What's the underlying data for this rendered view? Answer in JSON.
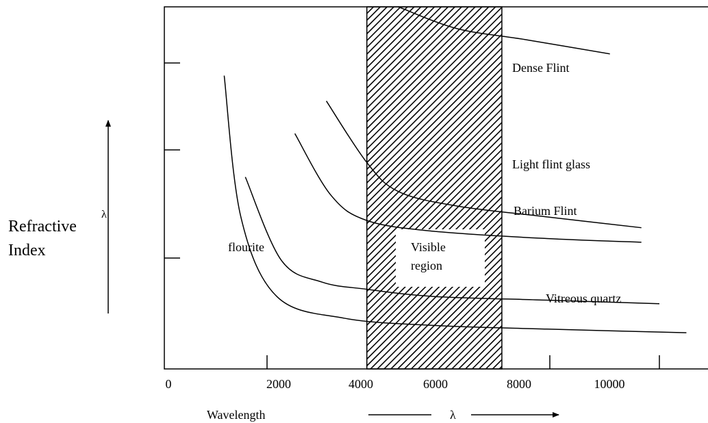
{
  "chart_data": {
    "type": "line",
    "title": "",
    "xlabel": "Wavelength",
    "x_symbol": "λ",
    "ylabel": [
      "Refractive",
      "Index"
    ],
    "y_symbol": "λ",
    "x_ticks": [
      "0",
      "2000",
      "4000",
      "6000",
      "8000",
      "10000"
    ],
    "xlim": [
      0,
      12000
    ],
    "y_ticks": [
      "",
      "",
      ""
    ],
    "grid": false,
    "shaded_region": {
      "label": [
        "Visible",
        "region"
      ],
      "x_range": [
        4500,
        7500
      ],
      "pattern": "diagonal-hatch"
    },
    "series": [
      {
        "name": "Dense Flint",
        "points": [
          [
            5200,
            1.0
          ],
          [
            6500,
            0.94
          ],
          [
            8000,
            0.91
          ],
          [
            9900,
            0.87
          ]
        ]
      },
      {
        "name": "Light flint glass",
        "points": [
          [
            3600,
            0.74
          ],
          [
            4500,
            0.57
          ],
          [
            5200,
            0.49
          ],
          [
            6500,
            0.45
          ],
          [
            8500,
            0.42
          ],
          [
            10600,
            0.39
          ]
        ]
      },
      {
        "name": "Barium Flint",
        "points": [
          [
            2900,
            0.65
          ],
          [
            3700,
            0.48
          ],
          [
            4500,
            0.41
          ],
          [
            6000,
            0.38
          ],
          [
            8500,
            0.36
          ],
          [
            10600,
            0.35
          ]
        ]
      },
      {
        "name": "Vitreous quartz",
        "points": [
          [
            1800,
            0.53
          ],
          [
            2600,
            0.3
          ],
          [
            3500,
            0.24
          ],
          [
            4500,
            0.22
          ],
          [
            6000,
            0.2
          ],
          [
            8500,
            0.19
          ],
          [
            11000,
            0.18
          ]
        ]
      },
      {
        "name": "flourite",
        "points": [
          [
            1330,
            0.81
          ],
          [
            1700,
            0.42
          ],
          [
            2500,
            0.2
          ],
          [
            4000,
            0.14
          ],
          [
            6000,
            0.12
          ],
          [
            8500,
            0.11
          ],
          [
            11600,
            0.1
          ]
        ]
      }
    ]
  },
  "colors": {
    "ink": "#000000",
    "background": "#ffffff"
  }
}
